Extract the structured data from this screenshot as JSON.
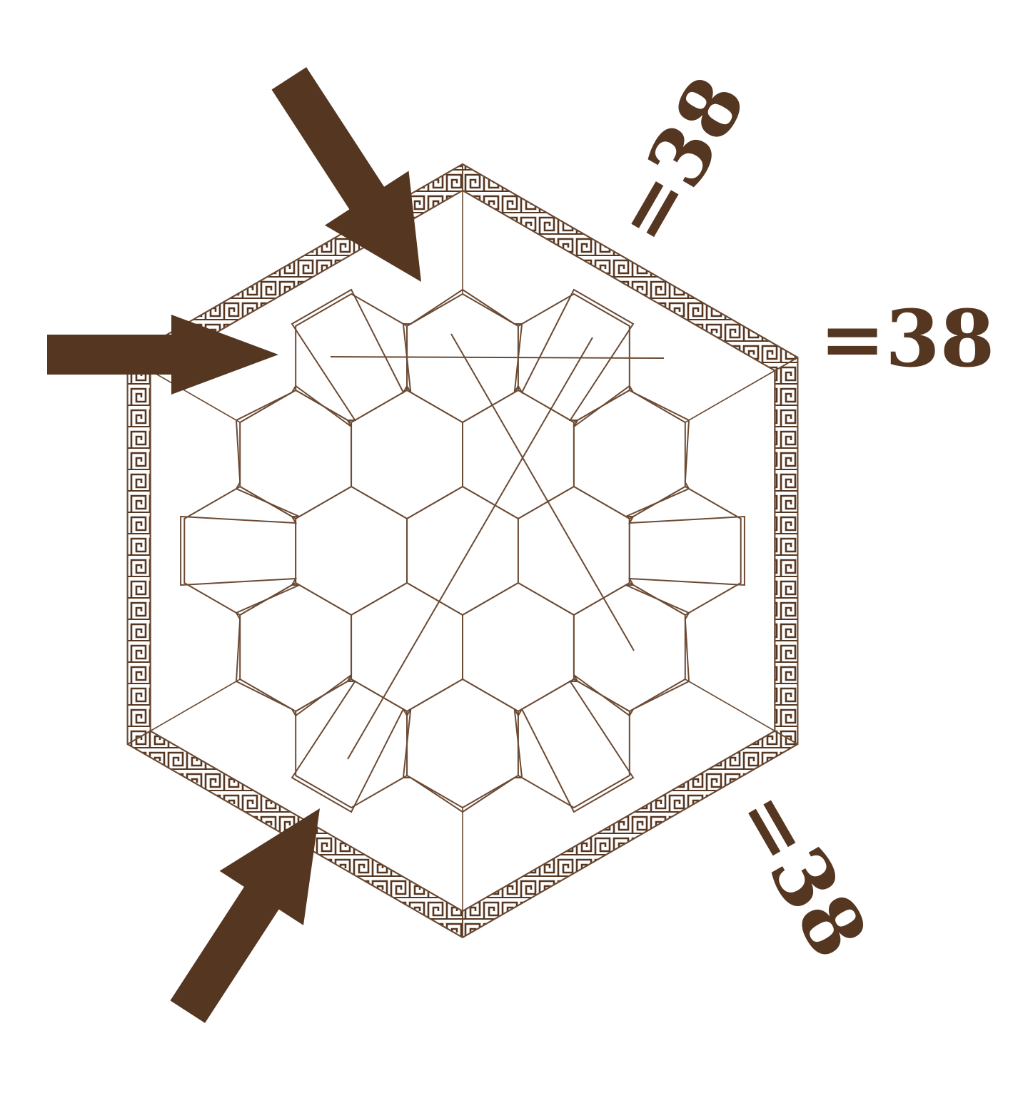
{
  "colors": {
    "ink": "#553621",
    "line": "#6b4a33",
    "background": "#ffffff"
  },
  "board": {
    "shape": "hexagon of 19 hexagonal cells (rows of 3-4-5-4-3)",
    "cell_count": 19,
    "cells_filled": 0
  },
  "sums": [
    {
      "id": "top",
      "text": "=38"
    },
    {
      "id": "right",
      "text": "=38"
    },
    {
      "id": "bottom",
      "text": "=38"
    }
  ],
  "arrows": [
    {
      "id": "arrow-top-left-diagonal",
      "direction": "down-right"
    },
    {
      "id": "arrow-left-horizontal",
      "direction": "right"
    },
    {
      "id": "arrow-bottom-left-diagonal",
      "direction": "up-right"
    }
  ],
  "border_pattern": "greek-key"
}
